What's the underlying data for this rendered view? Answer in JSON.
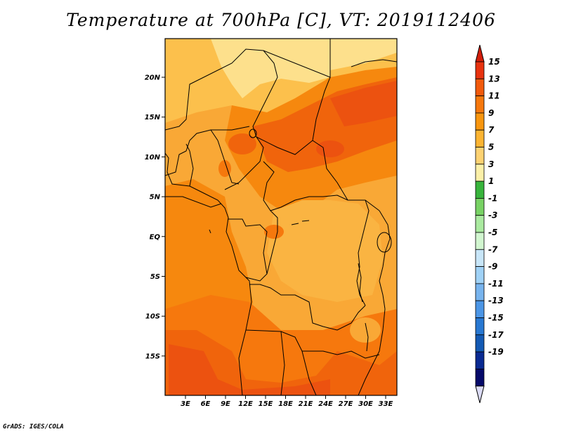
{
  "title": "Temperature at 700hPa [C], VT: 2019112406",
  "footer": "GrADS: IGES/COLA",
  "lat_labels": [
    "20N",
    "15N",
    "10N",
    "5N",
    "EQ",
    "5S",
    "10S",
    "15S"
  ],
  "lon_labels": [
    "3E",
    "6E",
    "9E",
    "12E",
    "15E",
    "18E",
    "21E",
    "24E",
    "27E",
    "30E",
    "33E"
  ],
  "colorbar": {
    "levels": [
      "15",
      "13",
      "11",
      "9",
      "7",
      "5",
      "3",
      "1",
      "-1",
      "-3",
      "-5",
      "-7",
      "-9",
      "-11",
      "-13",
      "-15",
      "-17",
      "-19"
    ],
    "colors": [
      "#e8320f",
      "#f25a0c",
      "#f6780d",
      "#f8960f",
      "#fcb432",
      "#fdd272",
      "#fcf0a8",
      "#38b43c",
      "#78d264",
      "#aaeaa0",
      "#d2f6d0",
      "#c8e6f8",
      "#a0d2f6",
      "#78b4ee",
      "#4c96e6",
      "#2878d2",
      "#145ab4",
      "#0a2a92",
      "#060a6a"
    ],
    "top_color": "#d21e0a",
    "bottom_color": "#dcdcf6"
  },
  "map_colors": {
    "base": "#f9a836",
    "light": "#fde08c",
    "mid": "#f6880e",
    "dark": "#f0640c",
    "hot": "#ec5210"
  }
}
